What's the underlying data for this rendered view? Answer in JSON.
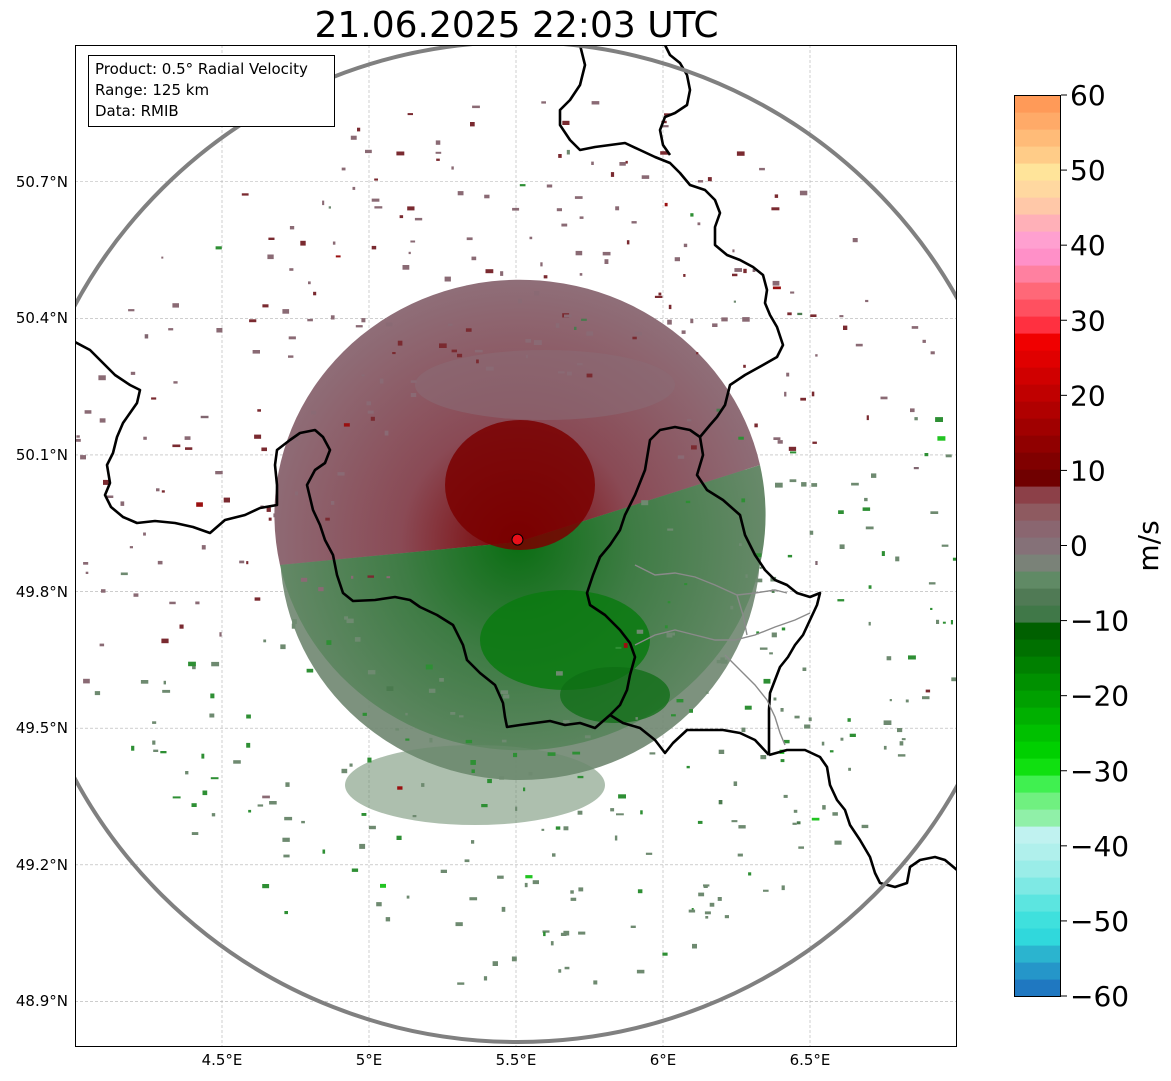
{
  "title": "21.06.2025 22:03 UTC",
  "info_box": {
    "product": "Product: 0.5° Radial Velocity",
    "range": "Range: 125 km",
    "data": "Data: RMIB"
  },
  "map": {
    "lon_range": [
      4.0,
      7.0
    ],
    "lat_range": [
      48.8,
      51.0
    ],
    "x_ticks": [
      {
        "value": 4.5,
        "label": "4.5°E"
      },
      {
        "value": 5.0,
        "label": "5°E"
      },
      {
        "value": 5.5,
        "label": "5.5°E"
      },
      {
        "value": 6.0,
        "label": "6°E"
      },
      {
        "value": 6.5,
        "label": "6.5°E"
      }
    ],
    "y_ticks": [
      {
        "value": 50.7,
        "label": "50.7°N"
      },
      {
        "value": 50.4,
        "label": "50.4°N"
      },
      {
        "value": 50.1,
        "label": "50.1°N"
      },
      {
        "value": 49.8,
        "label": "49.8°N"
      },
      {
        "value": 49.5,
        "label": "49.5°N"
      },
      {
        "value": 49.2,
        "label": "49.2°N"
      },
      {
        "value": 48.9,
        "label": "48.9°N"
      }
    ],
    "radar_site": {
      "lon": 5.505,
      "lat": 49.914,
      "color": "#e8101a"
    },
    "range_ring_km": 125,
    "grid": true
  },
  "colorbar": {
    "label": "m/s",
    "min": -60,
    "max": 60,
    "ticks": [
      {
        "value": 60,
        "label": "60"
      },
      {
        "value": 50,
        "label": "50"
      },
      {
        "value": 40,
        "label": "40"
      },
      {
        "value": 30,
        "label": "30"
      },
      {
        "value": 20,
        "label": "20"
      },
      {
        "value": 10,
        "label": "10"
      },
      {
        "value": 0,
        "label": "0"
      },
      {
        "value": -10,
        "label": "−10"
      },
      {
        "value": -20,
        "label": "−20"
      },
      {
        "value": -30,
        "label": "−30"
      },
      {
        "value": -40,
        "label": "−40"
      },
      {
        "value": -50,
        "label": "−50"
      },
      {
        "value": -60,
        "label": "−60"
      }
    ],
    "colors": [
      "#1f78c1",
      "#2596c9",
      "#2bb4cf",
      "#30d8dc",
      "#3fe0dd",
      "#5ce5e0",
      "#7ee9e4",
      "#9aede8",
      "#b0f0ec",
      "#c0f2f0",
      "#90f0a8",
      "#70f080",
      "#40f050",
      "#10e010",
      "#00d000",
      "#00c000",
      "#00b000",
      "#00a000",
      "#009000",
      "#008000",
      "#007000",
      "#006000",
      "#407848",
      "#507a55",
      "#608a65",
      "#7a8278",
      "#857178",
      "#8a6670",
      "#8e5a60",
      "#8c4048",
      "#700000",
      "#800000",
      "#900000",
      "#a00000",
      "#b00000",
      "#c00000",
      "#d00000",
      "#e00000",
      "#f00000",
      "#ff3040",
      "#ff5060",
      "#ff6878",
      "#ff80a0",
      "#ff90c8",
      "#ffa0d0",
      "#ffb0b8",
      "#ffc8a8",
      "#ffd8a0",
      "#ffe49a",
      "#ffcc88",
      "#ffbb78",
      "#ffaa68",
      "#ff9a58"
    ]
  },
  "legend_colors": {
    "reflectivity_pos": "#800000",
    "reflectivity_neg": "#006400",
    "border": "#000000",
    "range_ring": "#808080"
  }
}
